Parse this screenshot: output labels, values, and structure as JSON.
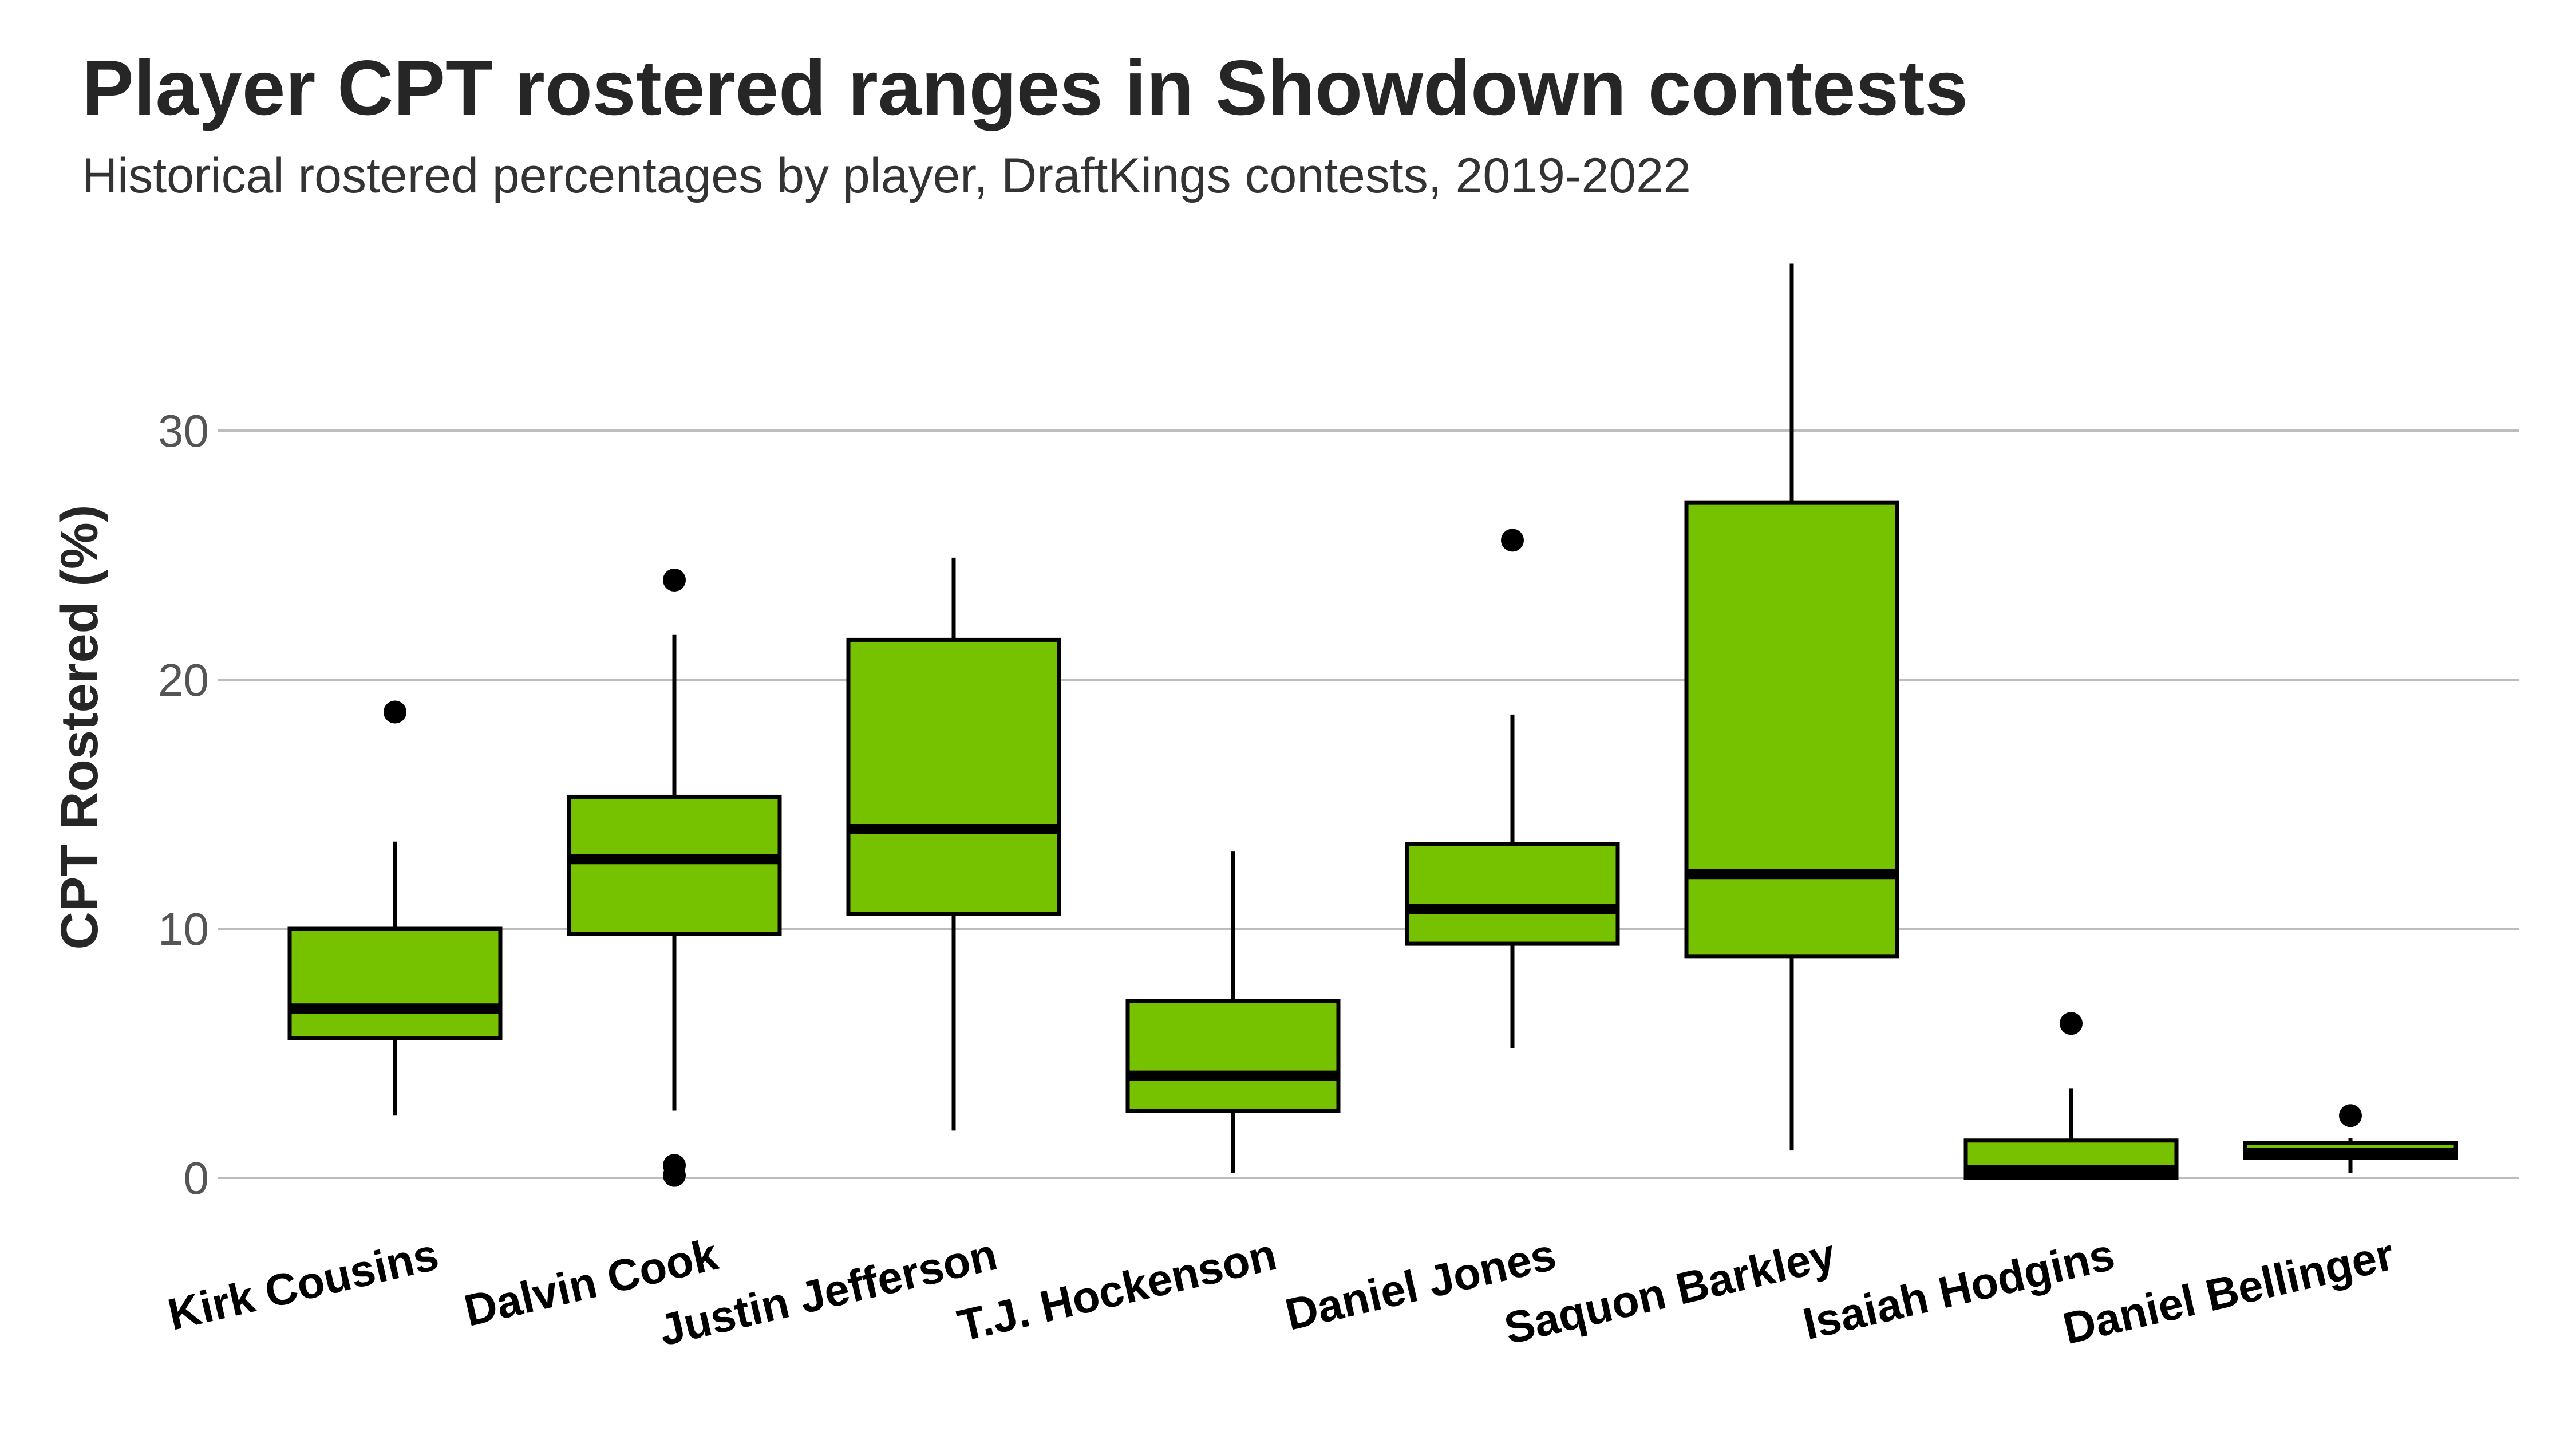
{
  "chart_data": {
    "type": "boxplot",
    "title": "Player CPT rostered ranges in Showdown contests",
    "subtitle": "Historical rostered percentages by player, DraftKings contests, 2019-2022",
    "ylabel": "CPT Rostered (%)",
    "xlabel": "",
    "ylim": [
      0,
      37
    ],
    "yticks": [
      0,
      10,
      20,
      30
    ],
    "grid": true,
    "box_color": "#76c100",
    "categories": [
      "Kirk Cousins",
      "Dalvin Cook",
      "Justin Jefferson",
      "T.J. Hockenson",
      "Daniel Jones",
      "Saquon Barkley",
      "Isaiah Hodgins",
      "Daniel Bellinger"
    ],
    "boxes": [
      {
        "whisker_low": 2.5,
        "q1": 5.6,
        "median": 6.8,
        "q3": 10.0,
        "whisker_high": 13.5,
        "outliers": [
          18.7
        ]
      },
      {
        "whisker_low": 2.7,
        "q1": 9.8,
        "median": 12.8,
        "q3": 15.3,
        "whisker_high": 21.8,
        "outliers": [
          24.0,
          0.5,
          0.1
        ]
      },
      {
        "whisker_low": 1.9,
        "q1": 10.6,
        "median": 14.0,
        "q3": 21.6,
        "whisker_high": 24.9,
        "outliers": []
      },
      {
        "whisker_low": 0.2,
        "q1": 2.7,
        "median": 4.1,
        "q3": 7.1,
        "whisker_high": 13.1,
        "outliers": []
      },
      {
        "whisker_low": 5.2,
        "q1": 9.4,
        "median": 10.8,
        "q3": 13.4,
        "whisker_high": 18.6,
        "outliers": [
          25.6
        ]
      },
      {
        "whisker_low": 1.1,
        "q1": 8.9,
        "median": 12.2,
        "q3": 27.1,
        "whisker_high": 36.7,
        "outliers": []
      },
      {
        "whisker_low": 0.0,
        "q1": 0.0,
        "median": 0.3,
        "q3": 1.5,
        "whisker_high": 3.6,
        "outliers": [
          6.2
        ]
      },
      {
        "whisker_low": 0.2,
        "q1": 0.8,
        "median": 1.0,
        "q3": 1.4,
        "whisker_high": 1.6,
        "outliers": [
          2.5
        ]
      }
    ]
  }
}
